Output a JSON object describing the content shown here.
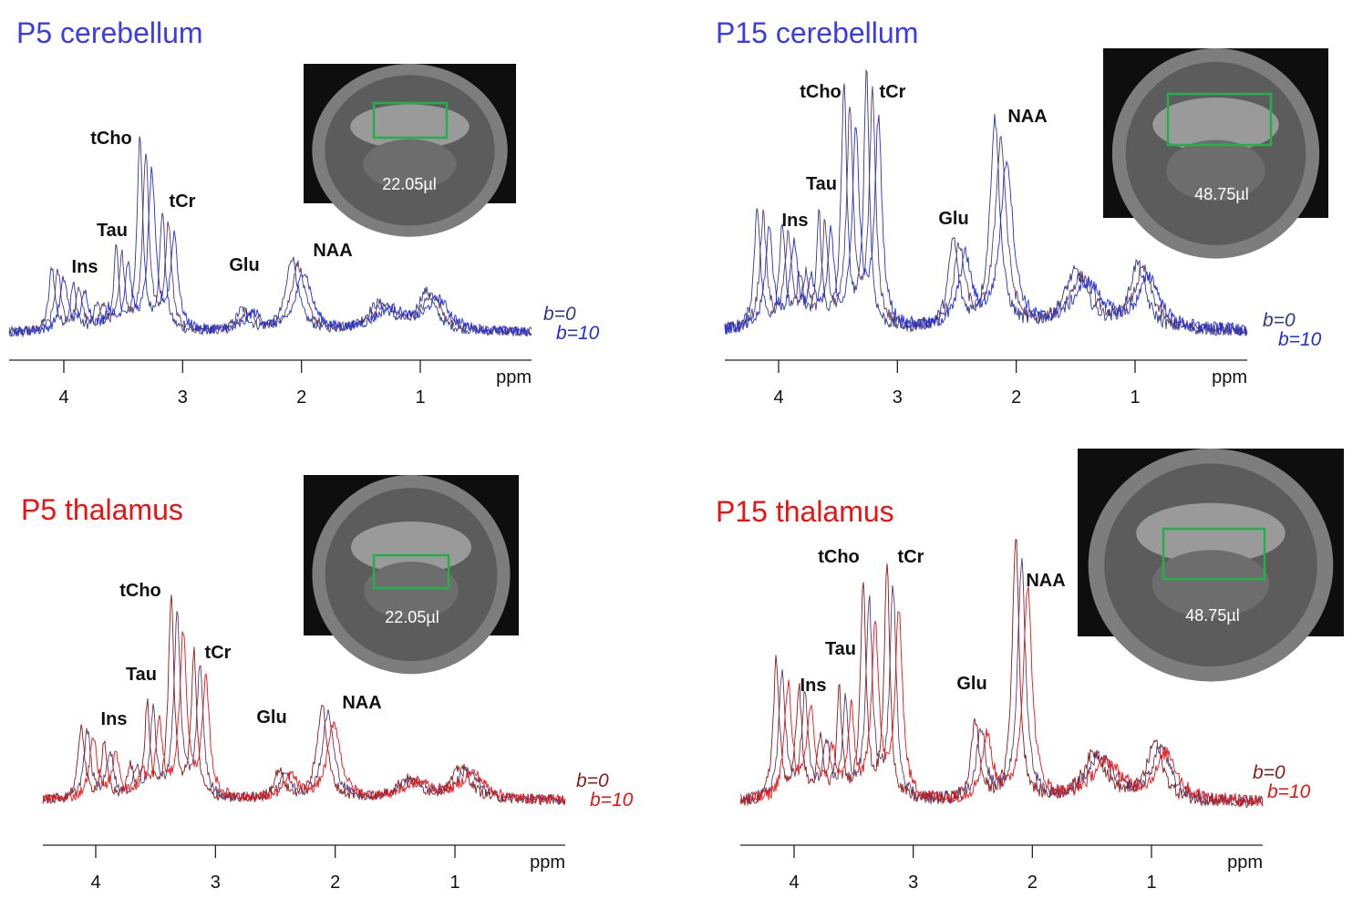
{
  "chart_data": [
    {
      "type": "line",
      "title": "P5 cerebellum",
      "title_color": "#3b3bea",
      "xlabel": "ppm",
      "x_ticks": [
        4,
        3,
        2,
        1
      ],
      "x_range": [
        4.45,
        0.0
      ],
      "x_direction": "reversed",
      "volume_label": "22.05µl",
      "series": [
        {
          "name": "b=0",
          "color": "#2d3a8c"
        },
        {
          "name": "b=10",
          "color": "#1f2ee0"
        }
      ],
      "series_count": 3,
      "annotations": [
        {
          "label": "tCho",
          "ppm": 3.35
        },
        {
          "label": "tCr",
          "ppm": 3.15
        },
        {
          "label": "Tau",
          "ppm": 3.6
        },
        {
          "label": "Ins",
          "ppm": 3.9
        },
        {
          "label": "Glu",
          "ppm": 2.5
        },
        {
          "label": "NAA",
          "ppm": 2.1
        }
      ],
      "peaks": [
        {
          "ppm": 4.1,
          "amp": 0.33,
          "width": 0.03
        },
        {
          "ppm": 3.92,
          "amp": 0.23,
          "width": 0.03
        },
        {
          "ppm": 3.72,
          "amp": 0.13,
          "width": 0.03
        },
        {
          "ppm": 3.56,
          "amp": 0.41,
          "width": 0.025
        },
        {
          "ppm": 3.36,
          "amp": 1.0,
          "width": 0.028
        },
        {
          "ppm": 3.17,
          "amp": 0.6,
          "width": 0.028
        },
        {
          "ppm": 2.5,
          "amp": 0.11,
          "width": 0.06
        },
        {
          "ppm": 2.08,
          "amp": 0.38,
          "width": 0.06
        },
        {
          "ppm": 1.35,
          "amp": 0.14,
          "width": 0.12
        },
        {
          "ppm": 0.95,
          "amp": 0.2,
          "width": 0.09
        }
      ]
    },
    {
      "type": "line",
      "title": "P15 cerebellum",
      "title_color": "#3b3bea",
      "xlabel": "ppm",
      "x_ticks": [
        4,
        3,
        2,
        1
      ],
      "x_range": [
        4.45,
        0.0
      ],
      "x_direction": "reversed",
      "volume_label": "48.75µl",
      "series": [
        {
          "name": "b=0",
          "color": "#2d3a8c"
        },
        {
          "name": "b=10",
          "color": "#1f2ee0"
        }
      ],
      "series_count": 3,
      "annotations": [
        {
          "label": "tCho",
          "ppm": 3.45
        },
        {
          "label": "tCr",
          "ppm": 3.22
        },
        {
          "label": "Tau",
          "ppm": 3.65
        },
        {
          "label": "Ins",
          "ppm": 3.95
        },
        {
          "label": "Glu",
          "ppm": 2.55
        },
        {
          "label": "NAA",
          "ppm": 2.05
        }
      ],
      "peaks": [
        {
          "ppm": 4.18,
          "amp": 0.48,
          "width": 0.03
        },
        {
          "ppm": 3.97,
          "amp": 0.4,
          "width": 0.03
        },
        {
          "ppm": 3.82,
          "amp": 0.2,
          "width": 0.03
        },
        {
          "ppm": 3.66,
          "amp": 0.43,
          "width": 0.025
        },
        {
          "ppm": 3.45,
          "amp": 0.94,
          "width": 0.028
        },
        {
          "ppm": 3.26,
          "amp": 1.0,
          "width": 0.028
        },
        {
          "ppm": 2.53,
          "amp": 0.34,
          "width": 0.05
        },
        {
          "ppm": 2.18,
          "amp": 0.81,
          "width": 0.05
        },
        {
          "ppm": 1.5,
          "amp": 0.22,
          "width": 0.12
        },
        {
          "ppm": 0.98,
          "amp": 0.25,
          "width": 0.08
        }
      ]
    },
    {
      "type": "line",
      "title": "P5 thalamus",
      "title_color": "#ee1111",
      "xlabel": "ppm",
      "x_ticks": [
        4,
        3,
        2,
        1
      ],
      "x_range": [
        4.45,
        0.0
      ],
      "x_direction": "reversed",
      "volume_label": "22.05µl",
      "series": [
        {
          "name": "b=0",
          "color": "#8b1a1a"
        },
        {
          "name": "b=10",
          "color": "#ee1111"
        }
      ],
      "series_count": 3,
      "annotations": [
        {
          "label": "tCho",
          "ppm": 3.35
        },
        {
          "label": "tCr",
          "ppm": 3.15
        },
        {
          "label": "Tau",
          "ppm": 3.6
        },
        {
          "label": "Ins",
          "ppm": 3.9
        },
        {
          "label": "Glu",
          "ppm": 2.5
        },
        {
          "label": "NAA",
          "ppm": 2.1
        }
      ],
      "peaks": [
        {
          "ppm": 4.12,
          "amp": 0.37,
          "width": 0.03
        },
        {
          "ppm": 3.93,
          "amp": 0.26,
          "width": 0.03
        },
        {
          "ppm": 3.71,
          "amp": 0.15,
          "width": 0.03
        },
        {
          "ppm": 3.57,
          "amp": 0.46,
          "width": 0.025
        },
        {
          "ppm": 3.37,
          "amp": 1.0,
          "width": 0.028
        },
        {
          "ppm": 3.18,
          "amp": 0.71,
          "width": 0.028
        },
        {
          "ppm": 2.47,
          "amp": 0.14,
          "width": 0.05
        },
        {
          "ppm": 2.11,
          "amp": 0.47,
          "width": 0.05
        },
        {
          "ppm": 1.4,
          "amp": 0.1,
          "width": 0.12
        },
        {
          "ppm": 0.95,
          "amp": 0.16,
          "width": 0.09
        }
      ]
    },
    {
      "type": "line",
      "title": "P15 thalamus",
      "title_color": "#ee1111",
      "xlabel": "ppm",
      "x_ticks": [
        4,
        3,
        2,
        1
      ],
      "x_range": [
        4.45,
        0.0
      ],
      "x_direction": "reversed",
      "volume_label": "48.75µl",
      "series": [
        {
          "name": "b=0",
          "color": "#8b1a1a"
        },
        {
          "name": "b=10",
          "color": "#ee1111"
        }
      ],
      "series_count": 3,
      "annotations": [
        {
          "label": "tCho",
          "ppm": 3.45
        },
        {
          "label": "tCr",
          "ppm": 3.2
        },
        {
          "label": "Tau",
          "ppm": 3.65
        },
        {
          "label": "Ins",
          "ppm": 3.95
        },
        {
          "label": "Glu",
          "ppm": 2.5
        },
        {
          "label": "NAA",
          "ppm": 2.1
        }
      ],
      "peaks": [
        {
          "ppm": 4.15,
          "amp": 0.53,
          "width": 0.03
        },
        {
          "ppm": 3.96,
          "amp": 0.42,
          "width": 0.03
        },
        {
          "ppm": 3.78,
          "amp": 0.22,
          "width": 0.03
        },
        {
          "ppm": 3.62,
          "amp": 0.4,
          "width": 0.025
        },
        {
          "ppm": 3.42,
          "amp": 0.83,
          "width": 0.028
        },
        {
          "ppm": 3.22,
          "amp": 0.89,
          "width": 0.028
        },
        {
          "ppm": 2.48,
          "amp": 0.3,
          "width": 0.04
        },
        {
          "ppm": 2.14,
          "amp": 1.0,
          "width": 0.035
        },
        {
          "ppm": 1.48,
          "amp": 0.18,
          "width": 0.12
        },
        {
          "ppm": 0.97,
          "amp": 0.22,
          "width": 0.08
        }
      ]
    }
  ]
}
